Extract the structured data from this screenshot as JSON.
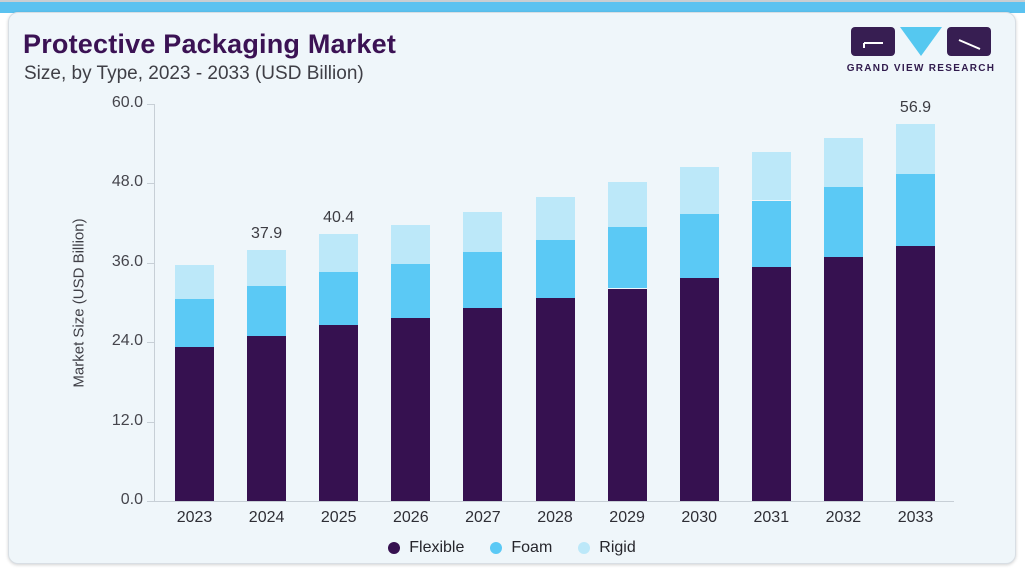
{
  "page": {
    "title": "Protective Packaging Market",
    "subtitle": "Size, by Type, 2023 - 2033 (USD Billion)",
    "brand": "GRAND VIEW RESEARCH"
  },
  "colors": {
    "ribbon": "#5BC2F0",
    "title": "#3B1254",
    "card_bg": "#EFF6FA",
    "axis": "#C7CFD6",
    "flexible": "#361150",
    "foam": "#5BC9F5",
    "rigid": "#BCE8F9",
    "logo_purple": "#371E52",
    "logo_blue": "#55C8F0"
  },
  "chart_data": {
    "type": "bar",
    "stacked": true,
    "title": "Protective Packaging Market Size, by Type, 2023 - 2033 (USD Billion)",
    "categories": [
      "2023",
      "2024",
      "2025",
      "2026",
      "2027",
      "2028",
      "2029",
      "2030",
      "2031",
      "2032",
      "2033"
    ],
    "series": [
      {
        "name": "Flexible",
        "color": "#361150",
        "values": [
          23.2,
          24.9,
          26.6,
          27.6,
          29.1,
          30.6,
          32.1,
          33.7,
          35.3,
          36.9,
          38.6
        ]
      },
      {
        "name": "Foam",
        "color": "#5BC9F5",
        "values": [
          7.3,
          7.6,
          8.0,
          8.2,
          8.5,
          8.9,
          9.3,
          9.7,
          10.1,
          10.5,
          10.8
        ]
      },
      {
        "name": "Rigid",
        "color": "#BCE8F9",
        "values": [
          5.1,
          5.4,
          5.8,
          5.9,
          6.1,
          6.5,
          6.8,
          7.1,
          7.3,
          7.5,
          7.5
        ]
      }
    ],
    "totals": [
      35.6,
      37.9,
      40.4,
      41.7,
      43.7,
      46.0,
      48.2,
      50.5,
      52.7,
      54.9,
      56.9
    ],
    "bar_labels": {
      "2024": "37.9",
      "2025": "40.4",
      "2033": "56.9"
    },
    "ylabel": "Market Size (USD Billion)",
    "yticks": [
      "0.0",
      "12.0",
      "24.0",
      "36.0",
      "48.0",
      "60.0"
    ],
    "ylim": [
      0,
      60
    ],
    "grid": false,
    "legend": [
      "Flexible",
      "Foam",
      "Rigid"
    ],
    "legend_position": "bottom"
  }
}
